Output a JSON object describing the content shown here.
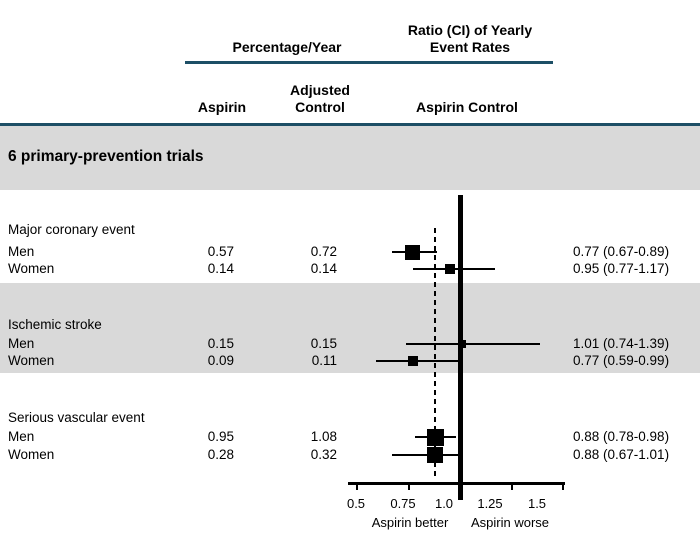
{
  "header": {
    "group_left": "Percentage/Year",
    "group_right_line1": "Ratio (CI) of Yearly",
    "group_right_line2": "Event Rates",
    "col_aspirin": "Aspirin",
    "col_adjusted_line1": "Adjusted",
    "col_adjusted_line2": "Control",
    "col_ratio": "Aspirin Control"
  },
  "section_title": "6 primary-prevention trials",
  "colors": {
    "rule": "#1d4f66",
    "shaded_band": "#d9d9d9",
    "marker": "#000000"
  },
  "chart_data": {
    "type": "forest",
    "title": "Ratio (CI) of Yearly Event Rates",
    "axis": {
      "xlim": [
        0.5,
        1.5
      ],
      "ticks": [
        0.5,
        0.75,
        1.0,
        1.25,
        1.5
      ],
      "tick_labels": [
        "0.5",
        "0.75",
        "1.0",
        "1.25",
        "1.5"
      ],
      "reference_line": 1.0,
      "overall_estimate_dashed_line": 0.88,
      "left_label": "Aspirin better",
      "right_label": "Aspirin worse",
      "grid": false
    },
    "groups": [
      {
        "label": "Major coronary event",
        "shaded": false,
        "rows": [
          {
            "label": "Men",
            "aspirin": "0.57",
            "control": "0.72",
            "ratio": 0.77,
            "ci_low": 0.67,
            "ci_high": 0.89,
            "ci_text": "0.77 (0.67-0.89)",
            "marker_size": 15
          },
          {
            "label": "Women",
            "aspirin": "0.14",
            "control": "0.14",
            "ratio": 0.95,
            "ci_low": 0.77,
            "ci_high": 1.17,
            "ci_text": "0.95 (0.77-1.17)",
            "marker_size": 10
          }
        ]
      },
      {
        "label": "Ischemic stroke",
        "shaded": true,
        "rows": [
          {
            "label": "Men",
            "aspirin": "0.15",
            "control": "0.15",
            "ratio": 1.01,
            "ci_low": 0.74,
            "ci_high": 1.39,
            "ci_text": "1.01 (0.74-1.39)",
            "marker_size": 8
          },
          {
            "label": "Women",
            "aspirin": "0.09",
            "control": "0.11",
            "ratio": 0.77,
            "ci_low": 0.59,
            "ci_high": 0.99,
            "ci_text": "0.77 (0.59-0.99)",
            "marker_size": 10
          }
        ]
      },
      {
        "label": "Serious vascular event",
        "shaded": false,
        "rows": [
          {
            "label": "Men",
            "aspirin": "0.95",
            "control": "1.08",
            "ratio": 0.88,
            "ci_low": 0.78,
            "ci_high": 0.98,
            "ci_text": "0.88 (0.78-0.98)",
            "marker_size": 17
          },
          {
            "label": "Women",
            "aspirin": "0.28",
            "control": "0.32",
            "ratio": 0.88,
            "ci_low": 0.67,
            "ci_high": 1.01,
            "ci_text": "0.88 (0.67-1.01)",
            "marker_size": 16
          }
        ]
      }
    ]
  }
}
